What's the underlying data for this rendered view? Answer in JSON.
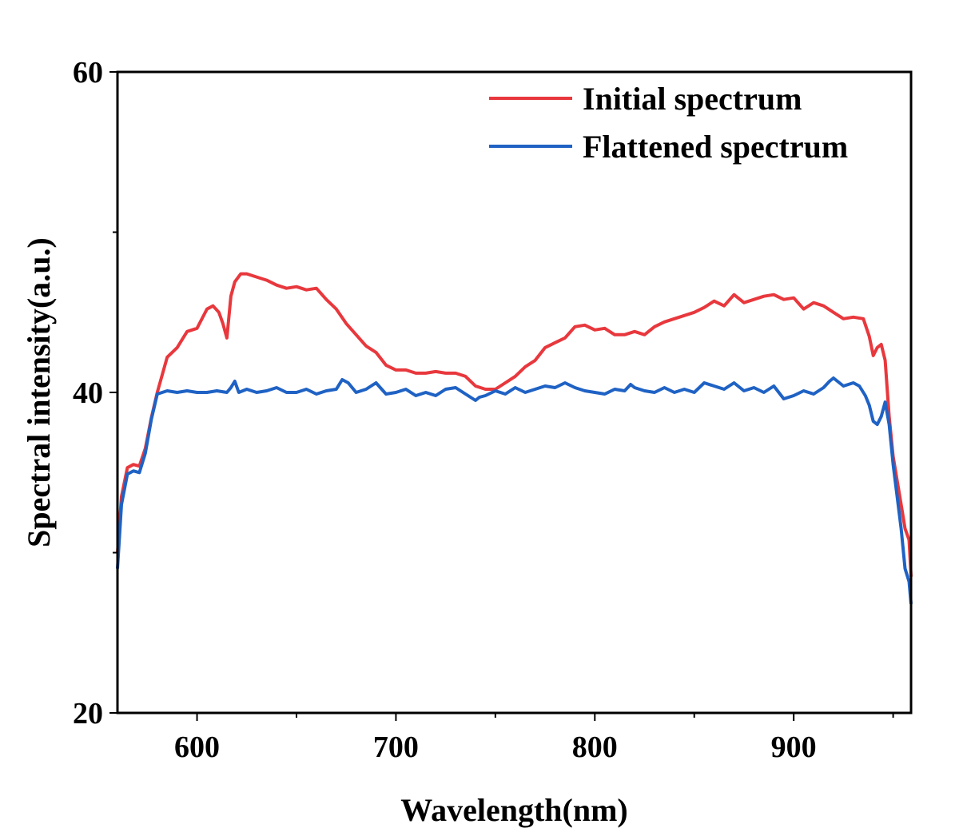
{
  "chart_data": {
    "type": "line",
    "xlabel": "Wavelength(nm)",
    "ylabel": "Spectral intensity(a.u.)",
    "xlim": [
      560,
      959
    ],
    "ylim": [
      20,
      60
    ],
    "x_ticks": [
      600,
      700,
      800,
      900
    ],
    "x_ticks_minor": [
      650,
      750,
      850,
      950
    ],
    "y_ticks": [
      20,
      40,
      60
    ],
    "y_ticks_minor": [
      30,
      50
    ],
    "grid": false,
    "legend_position": "top-right",
    "series": [
      {
        "name": "Initial spectrum",
        "color": "#e8383d",
        "x": [
          560,
          562,
          565,
          568,
          571,
          574,
          577,
          580,
          585,
          590,
          595,
          600,
          605,
          608,
          611,
          613,
          615,
          617,
          619,
          622,
          625,
          630,
          635,
          640,
          645,
          650,
          655,
          660,
          665,
          670,
          675,
          680,
          685,
          690,
          695,
          700,
          705,
          710,
          715,
          720,
          725,
          730,
          735,
          740,
          745,
          750,
          755,
          760,
          765,
          770,
          775,
          780,
          785,
          790,
          795,
          800,
          805,
          810,
          815,
          820,
          825,
          830,
          835,
          840,
          845,
          850,
          855,
          860,
          865,
          870,
          875,
          880,
          885,
          890,
          895,
          900,
          905,
          910,
          915,
          920,
          925,
          930,
          935,
          938,
          940,
          942,
          944,
          946,
          948,
          950,
          952,
          954,
          956,
          958,
          959
        ],
        "y": [
          30,
          33.5,
          35.3,
          35.5,
          35.4,
          36.5,
          38.4,
          40.0,
          42.2,
          42.8,
          43.8,
          44.0,
          45.2,
          45.4,
          45.0,
          44.3,
          43.4,
          46.0,
          46.9,
          47.4,
          47.4,
          47.2,
          47.0,
          46.7,
          46.5,
          46.6,
          46.4,
          46.5,
          45.8,
          45.2,
          44.3,
          43.6,
          42.9,
          42.5,
          41.7,
          41.4,
          41.4,
          41.2,
          41.2,
          41.3,
          41.2,
          41.2,
          41.0,
          40.4,
          40.2,
          40.2,
          40.6,
          41.0,
          41.6,
          42.0,
          42.8,
          43.1,
          43.4,
          44.1,
          44.2,
          43.9,
          44.0,
          43.6,
          43.6,
          43.8,
          43.6,
          44.1,
          44.4,
          44.6,
          44.8,
          45.0,
          45.3,
          45.7,
          45.4,
          46.1,
          45.6,
          45.8,
          46.0,
          46.1,
          45.8,
          45.9,
          45.2,
          45.6,
          45.4,
          45.0,
          44.6,
          44.7,
          44.6,
          43.5,
          42.3,
          42.8,
          43.0,
          42.0,
          38.5,
          36.0,
          34.5,
          33.0,
          31.5,
          30.8,
          28.5
        ]
      },
      {
        "name": "Flattened spectrum",
        "color": "#1f62c4",
        "x": [
          560,
          562,
          565,
          568,
          571,
          574,
          577,
          580,
          585,
          590,
          595,
          600,
          605,
          610,
          615,
          617,
          619,
          621,
          625,
          630,
          635,
          640,
          645,
          650,
          655,
          660,
          665,
          670,
          673,
          676,
          680,
          685,
          690,
          695,
          700,
          705,
          710,
          715,
          720,
          725,
          730,
          735,
          740,
          742,
          745,
          750,
          755,
          760,
          765,
          770,
          775,
          780,
          785,
          790,
          795,
          800,
          805,
          810,
          815,
          818,
          820,
          825,
          830,
          835,
          840,
          845,
          850,
          855,
          860,
          865,
          870,
          875,
          880,
          885,
          890,
          895,
          900,
          905,
          910,
          915,
          918,
          920,
          925,
          930,
          933,
          936,
          938,
          940,
          942,
          944,
          946,
          948,
          950,
          952,
          954,
          956,
          958,
          959
        ],
        "y": [
          29,
          33.0,
          34.9,
          35.1,
          35.0,
          36.2,
          38.3,
          39.9,
          40.1,
          40.0,
          40.1,
          40.0,
          40.0,
          40.1,
          40.0,
          40.3,
          40.7,
          40.0,
          40.2,
          40.0,
          40.1,
          40.3,
          40.0,
          40.0,
          40.2,
          39.9,
          40.1,
          40.2,
          40.8,
          40.6,
          40.0,
          40.2,
          40.6,
          39.9,
          40.0,
          40.2,
          39.8,
          40.0,
          39.8,
          40.2,
          40.3,
          39.9,
          39.5,
          39.7,
          39.8,
          40.1,
          39.9,
          40.3,
          40.0,
          40.2,
          40.4,
          40.3,
          40.6,
          40.3,
          40.1,
          40.0,
          39.9,
          40.2,
          40.1,
          40.5,
          40.3,
          40.1,
          40.0,
          40.3,
          40.0,
          40.2,
          40.0,
          40.6,
          40.4,
          40.2,
          40.6,
          40.1,
          40.3,
          40.0,
          40.4,
          39.6,
          39.8,
          40.1,
          39.9,
          40.3,
          40.7,
          40.9,
          40.4,
          40.6,
          40.4,
          39.8,
          39.2,
          38.2,
          38.0,
          38.5,
          39.4,
          38.0,
          35.5,
          33.5,
          31.5,
          29.0,
          28.2,
          26.8
        ]
      }
    ]
  }
}
